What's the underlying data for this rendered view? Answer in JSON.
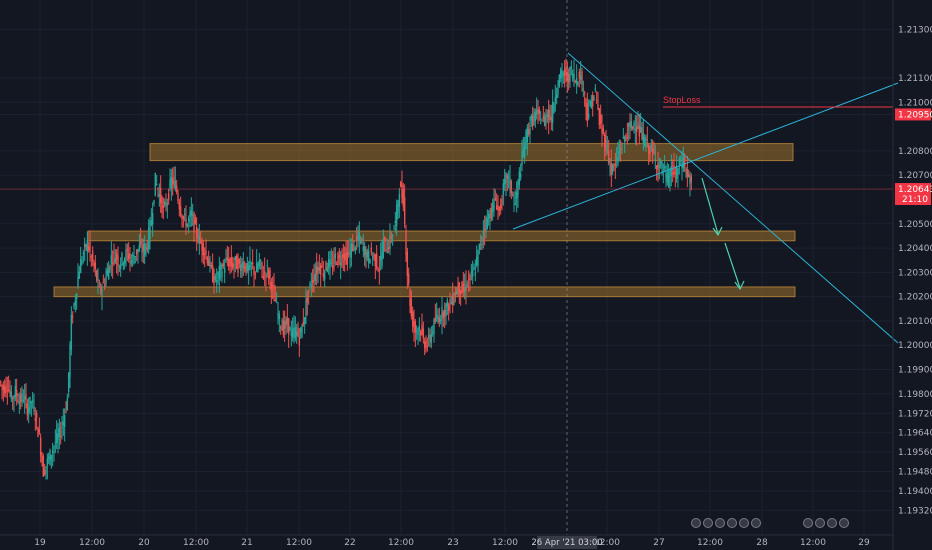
{
  "chart_data": {
    "type": "candlestick",
    "y_axis": {
      "range": [
        1.1926,
        1.2138
      ],
      "ticks": [
        "1.21300",
        "1.21100",
        "1.21000",
        "1.20950",
        "1.20800",
        "1.20700",
        "1.20643",
        "1.20500",
        "1.20400",
        "1.20300",
        "1.20200",
        "1.20100",
        "1.20000",
        "1.19900",
        "1.19800",
        "1.19720",
        "1.19640",
        "1.19560",
        "1.19480",
        "1.19400",
        "1.19320"
      ],
      "tick_values": [
        1.213,
        1.211,
        1.21,
        1.2095,
        1.208,
        1.207,
        1.20643,
        1.205,
        1.204,
        1.203,
        1.202,
        1.201,
        1.2,
        1.199,
        1.198,
        1.1972,
        1.1964,
        1.1956,
        1.1948,
        1.194,
        1.1932
      ]
    },
    "x_axis": {
      "ticks": [
        "19",
        "12:00",
        "20",
        "12:00",
        "21",
        "12:00",
        "22",
        "12:00",
        "23",
        "12:00",
        "12:00",
        "27",
        "12:00",
        "28",
        "12:00",
        "29"
      ],
      "crosshair_label": "26 Apr '21   03:00"
    },
    "price_labels": {
      "stop_loss": {
        "value": "1.20950",
        "color": "#f23645"
      },
      "current": {
        "value": "1.20643",
        "countdown": "21:10",
        "color": "#f23645"
      }
    },
    "annotations": {
      "stop_loss_text": "StopLoss"
    },
    "zones": [
      {
        "y_top": 1.2083,
        "y_bottom": 1.2076,
        "color": "#a0722a"
      },
      {
        "y_top": 1.2047,
        "y_bottom": 1.2043,
        "color": "#a0722a"
      },
      {
        "y_top": 1.2024,
        "y_bottom": 1.202,
        "color": "#a0722a"
      }
    ],
    "candles_path": [
      [
        0,
        1.1985
      ],
      [
        4,
        1.1982
      ],
      [
        8,
        1.1984
      ],
      [
        12,
        1.1978
      ],
      [
        16,
        1.1981
      ],
      [
        20,
        1.1977
      ],
      [
        24,
        1.1979
      ],
      [
        28,
        1.1974
      ],
      [
        32,
        1.1977
      ],
      [
        36,
        1.1971
      ],
      [
        40,
        1.1962
      ],
      [
        44,
        1.1948
      ],
      [
        48,
        1.1952
      ],
      [
        52,
        1.1956
      ],
      [
        56,
        1.196
      ],
      [
        60,
        1.1963
      ],
      [
        64,
        1.1969
      ],
      [
        68,
        1.1978
      ],
      [
        72,
        1.201
      ],
      [
        76,
        1.202
      ],
      [
        80,
        1.2032
      ],
      [
        84,
        1.2038
      ],
      [
        88,
        1.2042
      ],
      [
        92,
        1.2036
      ],
      [
        96,
        1.203
      ],
      [
        100,
        1.2022
      ],
      [
        104,
        1.2025
      ],
      [
        108,
        1.203
      ],
      [
        112,
        1.2036
      ],
      [
        116,
        1.2037
      ],
      [
        120,
        1.2034
      ],
      [
        124,
        1.2036
      ],
      [
        128,
        1.2038
      ],
      [
        132,
        1.2035
      ],
      [
        136,
        1.2038
      ],
      [
        140,
        1.204
      ],
      [
        144,
        1.2039
      ],
      [
        148,
        1.2042
      ],
      [
        152,
        1.2052
      ],
      [
        156,
        1.2068
      ],
      [
        160,
        1.2062
      ],
      [
        164,
        1.2055
      ],
      [
        168,
        1.206
      ],
      [
        172,
        1.2068
      ],
      [
        176,
        1.2066
      ],
      [
        180,
        1.2058
      ],
      [
        184,
        1.2052
      ],
      [
        188,
        1.205
      ],
      [
        192,
        1.2054
      ],
      [
        196,
        1.2047
      ],
      [
        200,
        1.2043
      ],
      [
        204,
        1.204
      ],
      [
        208,
        1.2036
      ],
      [
        212,
        1.203
      ],
      [
        216,
        1.2026
      ],
      [
        220,
        1.203
      ],
      [
        224,
        1.2032
      ],
      [
        228,
        1.2035
      ],
      [
        232,
        1.2033
      ],
      [
        236,
        1.2034
      ],
      [
        240,
        1.2032
      ],
      [
        244,
        1.2034
      ],
      [
        248,
        1.2031
      ],
      [
        252,
        1.2033
      ],
      [
        256,
        1.203
      ],
      [
        260,
        1.2034
      ],
      [
        264,
        1.2029
      ],
      [
        268,
        1.2031
      ],
      [
        272,
        1.2025
      ],
      [
        276,
        1.2018
      ],
      [
        280,
        1.201
      ],
      [
        284,
        1.2007
      ],
      [
        288,
        1.2009
      ],
      [
        292,
        1.2004
      ],
      [
        296,
        1.2006
      ],
      [
        300,
        1.2003
      ],
      [
        304,
        1.201
      ],
      [
        308,
        1.202
      ],
      [
        312,
        1.2026
      ],
      [
        316,
        1.203
      ],
      [
        320,
        1.2033
      ],
      [
        324,
        1.203
      ],
      [
        328,
        1.2034
      ],
      [
        332,
        1.2032
      ],
      [
        336,
        1.2036
      ],
      [
        340,
        1.2035
      ],
      [
        344,
        1.2038
      ],
      [
        348,
        1.2036
      ],
      [
        352,
        1.204
      ],
      [
        356,
        1.2042
      ],
      [
        360,
        1.2044
      ],
      [
        364,
        1.204
      ],
      [
        368,
        1.2036
      ],
      [
        372,
        1.2038
      ],
      [
        376,
        1.2035
      ],
      [
        380,
        1.2032
      ],
      [
        384,
        1.2042
      ],
      [
        388,
        1.204
      ],
      [
        392,
        1.2045
      ],
      [
        396,
        1.205
      ],
      [
        400,
        1.2065
      ],
      [
        404,
        1.206
      ],
      [
        408,
        1.203
      ],
      [
        412,
        1.2012
      ],
      [
        416,
        1.2006
      ],
      [
        420,
        1.2008
      ],
      [
        424,
        1.2002
      ],
      [
        428,
        1.2
      ],
      [
        432,
        1.2005
      ],
      [
        436,
        1.201
      ],
      [
        440,
        1.2012
      ],
      [
        444,
        1.2014
      ],
      [
        448,
        1.2016
      ],
      [
        452,
        1.2018
      ],
      [
        456,
        1.2022
      ],
      [
        460,
        1.2024
      ],
      [
        464,
        1.2022
      ],
      [
        468,
        1.2026
      ],
      [
        472,
        1.2028
      ],
      [
        476,
        1.2032
      ],
      [
        480,
        1.204
      ],
      [
        484,
        1.2048
      ],
      [
        488,
        1.2052
      ],
      [
        492,
        1.2055
      ],
      [
        496,
        1.206
      ],
      [
        500,
        1.2055
      ],
      [
        504,
        1.2064
      ],
      [
        508,
        1.207
      ],
      [
        512,
        1.2064
      ],
      [
        516,
        1.2058
      ],
      [
        520,
        1.207
      ],
      [
        524,
        1.208
      ],
      [
        528,
        1.2088
      ],
      [
        532,
        1.2092
      ],
      [
        536,
        1.2095
      ],
      [
        540,
        1.2094
      ],
      [
        544,
        1.2092
      ],
      [
        548,
        1.2096
      ],
      [
        552,
        1.2094
      ],
      [
        556,
        1.2104
      ],
      [
        560,
        1.211
      ],
      [
        564,
        1.2112
      ],
      [
        568,
        1.211
      ],
      [
        572,
        1.2113
      ],
      [
        576,
        1.2109
      ],
      [
        580,
        1.2112
      ],
      [
        584,
        1.2106
      ],
      [
        588,
        1.2095
      ],
      [
        592,
        1.21
      ],
      [
        596,
        1.2104
      ],
      [
        600,
        1.2092
      ],
      [
        604,
        1.2086
      ],
      [
        608,
        1.208
      ],
      [
        612,
        1.2072
      ],
      [
        616,
        1.2074
      ],
      [
        620,
        1.208
      ],
      [
        624,
        1.2084
      ],
      [
        628,
        1.2088
      ],
      [
        632,
        1.209
      ],
      [
        636,
        1.2092
      ],
      [
        640,
        1.2088
      ],
      [
        644,
        1.2085
      ],
      [
        648,
        1.2082
      ],
      [
        652,
        1.208
      ],
      [
        656,
        1.2076
      ],
      [
        660,
        1.2074
      ],
      [
        664,
        1.2072
      ],
      [
        668,
        1.2068
      ],
      [
        672,
        1.2072
      ],
      [
        676,
        1.207
      ],
      [
        680,
        1.2074
      ],
      [
        684,
        1.2076
      ],
      [
        688,
        1.207
      ],
      [
        692,
        1.2066
      ]
    ]
  }
}
